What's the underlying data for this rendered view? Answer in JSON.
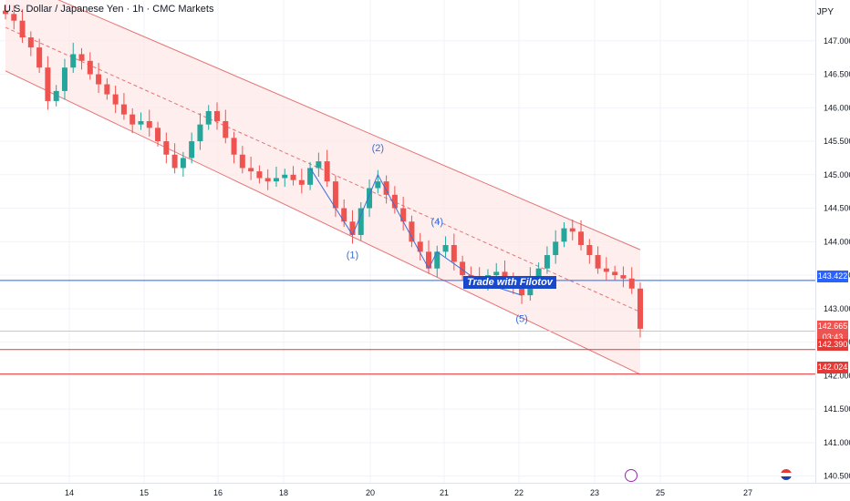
{
  "header": {
    "title": "U.S. Dollar / Japanese Yen · 1h · CMC Markets",
    "currency": "JPY"
  },
  "watermark": "Trade with Filotov",
  "price_labels": {
    "current": "142.665",
    "countdown": "03:43",
    "blue_line": "143.422",
    "red_line_1": "142.390",
    "red_line_2": "142.024"
  },
  "colors": {
    "up": "#26a69a",
    "down": "#ef5350",
    "channel_fill": "#fde8e8",
    "channel_line": "#e57373",
    "wave": "#3b6fd6",
    "blue_line": "#2962ff",
    "red_line": "#e53935"
  },
  "chart_data": {
    "type": "candlestick",
    "title": "U.S. Dollar / Japanese Yen · 1h · CMC Markets",
    "x_ticks": [
      "14",
      "15",
      "16",
      "18",
      "20",
      "21",
      "22",
      "23",
      "25",
      "27"
    ],
    "y_ticks": [
      "147.000",
      "146.500",
      "146.000",
      "145.500",
      "145.000",
      "144.500",
      "144.000",
      "143.500",
      "143.000",
      "142.500",
      "142.000",
      "141.500",
      "141.000",
      "140.500"
    ],
    "ylim": [
      140.4,
      147.5
    ],
    "wave_labels": [
      "(1)",
      "(2)",
      "(4)",
      "(5)"
    ],
    "horizontal_lines": [
      143.422,
      142.665,
      142.39,
      142.024
    ],
    "price_path": [
      147.4,
      147.3,
      147.05,
      146.9,
      146.6,
      146.1,
      146.25,
      146.6,
      146.8,
      146.7,
      146.5,
      146.35,
      146.2,
      146.05,
      145.9,
      145.75,
      145.8,
      145.7,
      145.5,
      145.3,
      145.1,
      145.25,
      145.5,
      145.75,
      145.95,
      145.8,
      145.55,
      145.3,
      145.1,
      145.05,
      144.95,
      144.9,
      144.95,
      145.0,
      144.92,
      144.85,
      145.1,
      145.2,
      144.9,
      144.5,
      144.3,
      144.1,
      144.5,
      144.8,
      144.9,
      144.7,
      144.5,
      144.3,
      144.0,
      143.85,
      143.6,
      143.85,
      143.95,
      143.7,
      143.5,
      143.45,
      143.4,
      143.5,
      143.55,
      143.45,
      143.3,
      143.2,
      143.45,
      143.6,
      143.8,
      144.0,
      144.2,
      144.15,
      143.95,
      143.8,
      143.6,
      143.55,
      143.5,
      143.45,
      143.3,
      142.7
    ],
    "channel": {
      "upper": [
        [
          0,
          147.95
        ],
        [
          74,
          143.88
        ]
      ],
      "lower": [
        [
          0,
          146.55
        ],
        [
          74,
          142.02
        ]
      ],
      "middle_dashed": [
        [
          0,
          147.2
        ],
        [
          74,
          142.95
        ]
      ]
    }
  }
}
